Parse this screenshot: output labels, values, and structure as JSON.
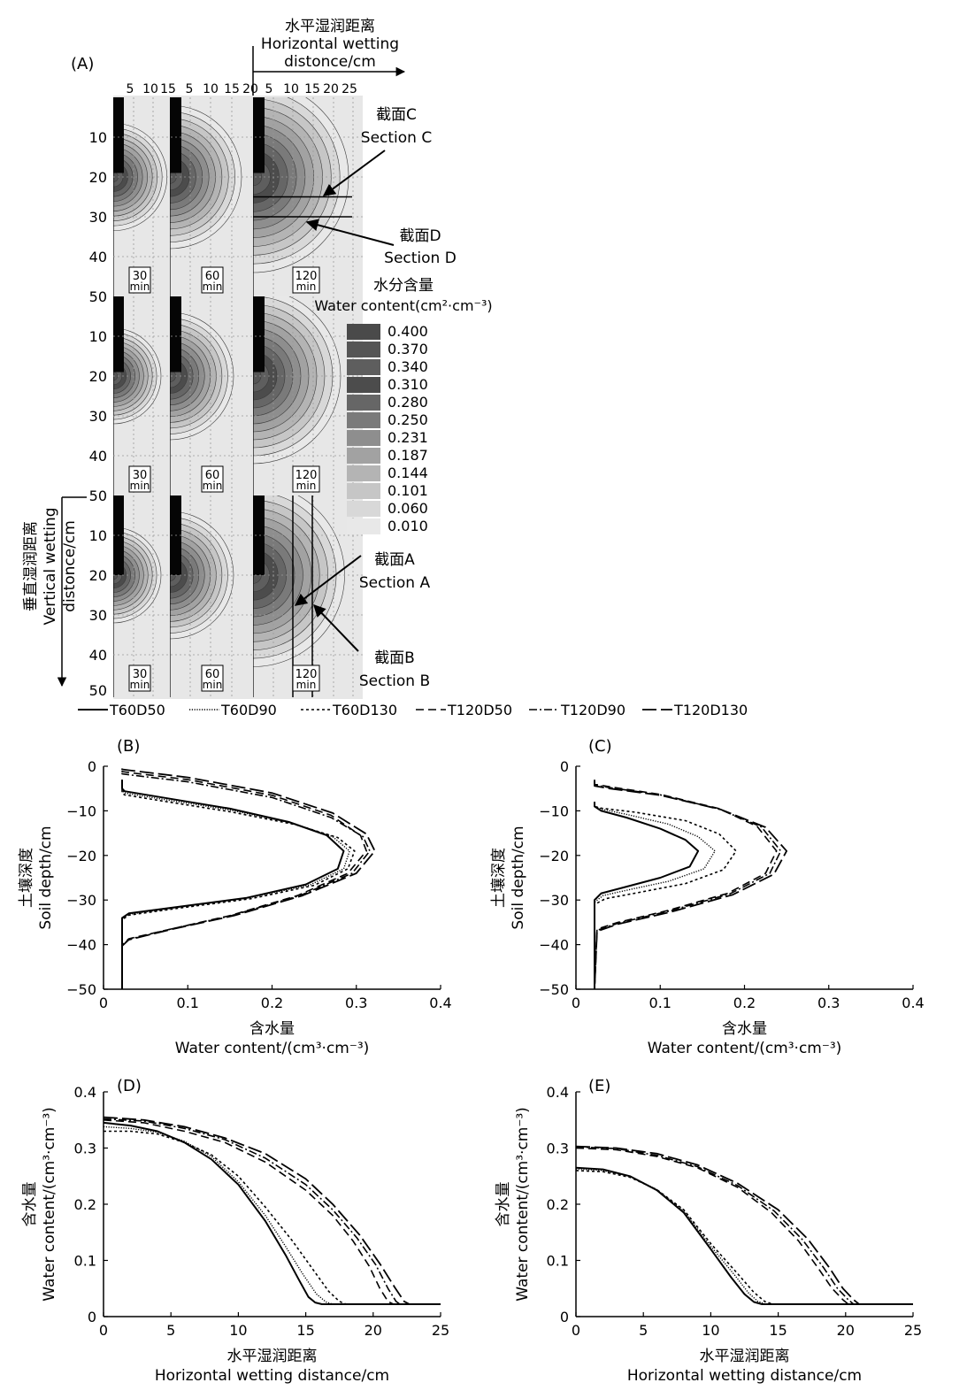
{
  "panelA": {
    "panel_label": "(A)",
    "horizontal_axis": {
      "title_cn": "水平湿润距离",
      "title_en_1": "Horizontal wetting",
      "title_en_2": "distonce/cm"
    },
    "vertical_axis": {
      "title_cn": "垂直湿润距离",
      "title_en_1": "Vertical wetting",
      "title_en_2": "distonce/cm"
    },
    "top_ticks": {
      "col1": [
        "5",
        "10",
        "15"
      ],
      "col2": [
        "5",
        "10",
        "15",
        "20"
      ],
      "col3": [
        "5",
        "10",
        "15",
        "20",
        "25"
      ]
    },
    "depth_ticks": [
      "10",
      "20",
      "30",
      "40",
      "50"
    ],
    "depth_extents_cm": [
      26,
      50
    ],
    "time_boxes": [
      {
        "num": "30",
        "unit": "min"
      },
      {
        "num": "60",
        "unit": "min"
      },
      {
        "num": "120",
        "unit": "min"
      }
    ],
    "rows": [
      {
        "row": 1,
        "wetting_radius_cm": [
          13.5,
          18,
          24
        ],
        "center_depth_cm": 20
      },
      {
        "row": 2,
        "wetting_radius_cm": [
          12,
          16,
          22
        ],
        "center_depth_cm": 20
      },
      {
        "row": 3,
        "wetting_radius_cm": [
          12,
          16,
          23
        ],
        "center_depth_cm": 20
      }
    ],
    "sections": {
      "C": {
        "cn": "截面C",
        "en": "Section C",
        "depth_cm": 25
      },
      "D": {
        "cn": "截面D",
        "en": "Section D",
        "depth_cm": 30
      },
      "A": {
        "cn": "截面A",
        "en": "Section A",
        "x_cm": 10
      },
      "B": {
        "cn": "截面B",
        "en": "Section B",
        "x_cm": 15
      }
    },
    "legend": {
      "title_cn": "水分含量",
      "title_en": "Water content(cm²·cm⁻³)",
      "levels": [
        {
          "value": "0.400",
          "color": "#4a4a4a"
        },
        {
          "value": "0.370",
          "color": "#555555"
        },
        {
          "value": "0.340",
          "color": "#5e5e5e"
        },
        {
          "value": "0.310",
          "color": "#4c4c4c"
        },
        {
          "value": "0.280",
          "color": "#666666"
        },
        {
          "value": "0.250",
          "color": "#7a7a7a"
        },
        {
          "value": "0.231",
          "color": "#8e8e8e"
        },
        {
          "value": "0.187",
          "color": "#a2a2a2"
        },
        {
          "value": "0.144",
          "color": "#b4b4b4"
        },
        {
          "value": "0.101",
          "color": "#c6c6c6"
        },
        {
          "value": "0.060",
          "color": "#d8d8d8"
        },
        {
          "value": "0.010",
          "color": "#e8e8e8"
        }
      ]
    }
  },
  "series_legend": [
    "T60D50",
    "T60D90",
    "T60D130",
    "T120D50",
    "T120D90",
    "T120D130"
  ],
  "chart_data": [
    {
      "panel": "(B)",
      "type": "line",
      "ylabel_cn": "土壤深度",
      "ylabel_en": "Soil depth/cm",
      "xlabel_cn": "含水量",
      "xlabel_en": "Water content/(cm³·cm⁻³)",
      "xlim": [
        0,
        0.4
      ],
      "ylim": [
        -50,
        0
      ],
      "xticks": [
        "0",
        "0.1",
        "0.2",
        "0.3",
        "0.4"
      ],
      "yticks": [
        "0",
        "−10",
        "−20",
        "−30",
        "−40",
        "−50"
      ],
      "series": [
        {
          "name": "T60D50",
          "x": [
            0.022,
            0.022,
            0.025,
            0.07,
            0.15,
            0.22,
            0.265,
            0.285,
            0.278,
            0.24,
            0.17,
            0.09,
            0.03,
            0.022,
            0.022
          ],
          "y": [
            -3,
            -5,
            -5.6,
            -7,
            -9.5,
            -12.5,
            -15.5,
            -19,
            -23,
            -26.5,
            -29.5,
            -31.5,
            -33,
            -34,
            -50
          ]
        },
        {
          "name": "T60D90",
          "x": [
            0.022,
            0.022,
            0.025,
            0.07,
            0.15,
            0.225,
            0.272,
            0.292,
            0.285,
            0.245,
            0.17,
            0.09,
            0.03,
            0.022,
            0.022
          ],
          "y": [
            -3.5,
            -5.5,
            -6,
            -7.4,
            -9.8,
            -12.8,
            -15.8,
            -19,
            -23,
            -26.6,
            -29.6,
            -31.6,
            -33.2,
            -34.2,
            -50
          ]
        },
        {
          "name": "T60D130",
          "x": [
            0.022,
            0.022,
            0.025,
            0.07,
            0.15,
            0.228,
            0.278,
            0.298,
            0.29,
            0.25,
            0.175,
            0.09,
            0.03,
            0.022,
            0.022
          ],
          "y": [
            -4,
            -6,
            -6.4,
            -7.8,
            -10.2,
            -13.1,
            -16,
            -19,
            -23,
            -26.7,
            -29.7,
            -31.8,
            -33.4,
            -34.4,
            -50
          ]
        },
        {
          "name": "T120D50",
          "x": [
            0.022,
            0.022,
            0.03,
            0.1,
            0.2,
            0.27,
            0.305,
            0.312,
            0.29,
            0.23,
            0.15,
            0.08,
            0.03,
            0.022,
            0.022
          ],
          "y": [
            -1,
            -1.2,
            -1.4,
            -3,
            -6.5,
            -11,
            -15.5,
            -19,
            -24,
            -29,
            -33.5,
            -36.5,
            -38.7,
            -40,
            -50
          ]
        },
        {
          "name": "T120D90",
          "x": [
            0.022,
            0.022,
            0.03,
            0.1,
            0.2,
            0.27,
            0.308,
            0.316,
            0.295,
            0.233,
            0.152,
            0.08,
            0.03,
            0.022,
            0.022
          ],
          "y": [
            -1.5,
            -1.7,
            -1.9,
            -3.5,
            -7,
            -11.5,
            -15.8,
            -19,
            -24,
            -29,
            -33.5,
            -36.5,
            -38.8,
            -40.2,
            -50
          ]
        },
        {
          "name": "T120D130",
          "x": [
            0.022,
            0.022,
            0.03,
            0.1,
            0.2,
            0.272,
            0.312,
            0.322,
            0.3,
            0.236,
            0.155,
            0.08,
            0.03,
            0.022,
            0.022
          ],
          "y": [
            -0.5,
            -0.7,
            -0.9,
            -2.5,
            -6,
            -10.5,
            -15.2,
            -19,
            -24,
            -29,
            -33.5,
            -36.6,
            -38.9,
            -40.3,
            -50
          ]
        }
      ]
    },
    {
      "panel": "(C)",
      "type": "line",
      "ylabel_cn": "土壤深度",
      "ylabel_en": "Soil depth/cm",
      "xlabel_cn": "含水量",
      "xlabel_en": "Water content/(cm³·cm⁻³)",
      "xlim": [
        0,
        0.4
      ],
      "ylim": [
        -50,
        0
      ],
      "xticks": [
        "0",
        "0.1",
        "0.2",
        "0.3",
        "0.4"
      ],
      "yticks": [
        "0",
        "−10",
        "−20",
        "−30",
        "−40",
        "−50"
      ],
      "series": [
        {
          "name": "T60D50",
          "x": [
            0.022,
            0.022,
            0.03,
            0.06,
            0.1,
            0.13,
            0.145,
            0.135,
            0.1,
            0.06,
            0.03,
            0.022,
            0.022
          ],
          "y": [
            -8,
            -9,
            -10,
            -11.5,
            -14,
            -16.5,
            -19,
            -22.5,
            -25,
            -27,
            -28.5,
            -30,
            -50
          ]
        },
        {
          "name": "T60D90",
          "x": [
            0.022,
            0.022,
            0.03,
            0.06,
            0.11,
            0.145,
            0.165,
            0.152,
            0.11,
            0.065,
            0.032,
            0.022,
            0.022
          ],
          "y": [
            -8,
            -9,
            -9.6,
            -10.8,
            -13,
            -15.8,
            -19,
            -23,
            -25.8,
            -27.6,
            -29,
            -30.5,
            -50
          ]
        },
        {
          "name": "T60D130",
          "x": [
            0.022,
            0.022,
            0.03,
            0.07,
            0.13,
            0.17,
            0.19,
            0.175,
            0.13,
            0.075,
            0.035,
            0.022,
            0.022
          ],
          "y": [
            -8,
            -9,
            -9.4,
            -10.3,
            -12.2,
            -15.2,
            -19,
            -23.2,
            -26.3,
            -28.3,
            -29.7,
            -31,
            -50
          ]
        },
        {
          "name": "T120D50",
          "x": [
            0.022,
            0.022,
            0.04,
            0.1,
            0.17,
            0.215,
            0.238,
            0.225,
            0.18,
            0.11,
            0.05,
            0.025,
            0.022
          ],
          "y": [
            -3,
            -4,
            -4.6,
            -6.3,
            -9.5,
            -13.5,
            -19,
            -24,
            -28.5,
            -32.3,
            -35,
            -36.5,
            -50
          ]
        },
        {
          "name": "T120D90",
          "x": [
            0.022,
            0.022,
            0.04,
            0.1,
            0.17,
            0.22,
            0.243,
            0.23,
            0.183,
            0.112,
            0.05,
            0.025,
            0.022
          ],
          "y": [
            -3.2,
            -4.2,
            -4.8,
            -6.4,
            -9.6,
            -13.6,
            -19,
            -24,
            -28.6,
            -32.4,
            -35.2,
            -36.8,
            -50
          ]
        },
        {
          "name": "T120D130",
          "x": [
            0.022,
            0.022,
            0.04,
            0.1,
            0.172,
            0.225,
            0.25,
            0.235,
            0.186,
            0.114,
            0.05,
            0.025,
            0.022
          ],
          "y": [
            -3.4,
            -4.4,
            -5,
            -6.5,
            -9.7,
            -13.7,
            -19,
            -24.2,
            -28.8,
            -32.6,
            -35.4,
            -37,
            -50
          ]
        }
      ]
    },
    {
      "panel": "(D)",
      "type": "line",
      "ylabel_cn": "含水量",
      "ylabel_en": "Water content/(cm³·cm⁻³)",
      "xlabel_cn": "水平湿润距离",
      "xlabel_en": "Horizontal wetting distance/cm",
      "xlim": [
        0,
        25
      ],
      "ylim": [
        0,
        0.4
      ],
      "xticks": [
        "0",
        "5",
        "10",
        "15",
        "20",
        "25"
      ],
      "yticks": [
        "0",
        "0.1",
        "0.2",
        "0.3",
        "0.4"
      ],
      "series": [
        {
          "name": "T60D50",
          "x": [
            0,
            2,
            4,
            6,
            8,
            10,
            12,
            13.5,
            14.5,
            15.2,
            15.7,
            16.2,
            25
          ],
          "y": [
            0.345,
            0.34,
            0.33,
            0.31,
            0.28,
            0.235,
            0.17,
            0.11,
            0.065,
            0.035,
            0.025,
            0.022,
            0.022
          ]
        },
        {
          "name": "T60D90",
          "x": [
            0,
            2,
            4,
            6,
            8,
            10,
            12,
            13.5,
            14.8,
            15.8,
            16.5,
            17,
            25
          ],
          "y": [
            0.338,
            0.335,
            0.328,
            0.312,
            0.285,
            0.24,
            0.18,
            0.125,
            0.075,
            0.04,
            0.026,
            0.022,
            0.022
          ]
        },
        {
          "name": "T60D130",
          "x": [
            0,
            2,
            4,
            6,
            8,
            10,
            12,
            14,
            15.5,
            16.7,
            17.5,
            18,
            25
          ],
          "y": [
            0.33,
            0.33,
            0.325,
            0.31,
            0.288,
            0.25,
            0.195,
            0.135,
            0.085,
            0.045,
            0.027,
            0.022,
            0.022
          ]
        },
        {
          "name": "T120D50",
          "x": [
            0,
            3,
            6,
            9,
            12,
            15,
            17,
            18.5,
            19.7,
            20.5,
            21.1,
            21.5,
            25
          ],
          "y": [
            0.35,
            0.345,
            0.33,
            0.31,
            0.275,
            0.225,
            0.18,
            0.135,
            0.09,
            0.05,
            0.027,
            0.022,
            0.022
          ]
        },
        {
          "name": "T120D90",
          "x": [
            0,
            3,
            6,
            9,
            12,
            15,
            17,
            18.8,
            20.2,
            21.1,
            21.7,
            22,
            25
          ],
          "y": [
            0.352,
            0.348,
            0.335,
            0.315,
            0.282,
            0.235,
            0.19,
            0.14,
            0.092,
            0.05,
            0.027,
            0.022,
            0.022
          ]
        },
        {
          "name": "T120D130",
          "x": [
            0,
            3,
            6,
            9,
            12,
            15,
            17,
            19,
            20.5,
            21.6,
            22.3,
            22.7,
            25
          ],
          "y": [
            0.355,
            0.35,
            0.338,
            0.318,
            0.29,
            0.245,
            0.2,
            0.145,
            0.094,
            0.052,
            0.027,
            0.022,
            0.022
          ]
        }
      ]
    },
    {
      "panel": "(E)",
      "type": "line",
      "ylabel_cn": "含水量",
      "ylabel_en": "Water content/(cm³·cm⁻³)",
      "xlabel_cn": "水平湿润距离",
      "xlabel_en": "Horizontal wetting distance/cm",
      "xlim": [
        0,
        25
      ],
      "ylim": [
        0,
        0.4
      ],
      "xticks": [
        "0",
        "5",
        "10",
        "15",
        "20",
        "25"
      ],
      "yticks": [
        "0",
        "0.1",
        "0.2",
        "0.3",
        "0.4"
      ],
      "series": [
        {
          "name": "T60D50",
          "x": [
            0,
            2,
            4,
            6,
            8,
            10,
            11.5,
            12.5,
            13.2,
            13.8,
            25
          ],
          "y": [
            0.265,
            0.262,
            0.25,
            0.225,
            0.185,
            0.12,
            0.07,
            0.04,
            0.026,
            0.022,
            0.022
          ]
        },
        {
          "name": "T60D90",
          "x": [
            0,
            2,
            4,
            6,
            8,
            10,
            11.8,
            12.8,
            13.5,
            14.1,
            25
          ],
          "y": [
            0.263,
            0.26,
            0.25,
            0.226,
            0.188,
            0.125,
            0.073,
            0.042,
            0.027,
            0.022,
            0.022
          ]
        },
        {
          "name": "T60D130",
          "x": [
            0,
            2,
            4,
            6,
            8,
            10,
            12,
            13.2,
            14,
            14.6,
            25
          ],
          "y": [
            0.26,
            0.258,
            0.248,
            0.226,
            0.19,
            0.13,
            0.076,
            0.043,
            0.027,
            0.022,
            0.022
          ]
        },
        {
          "name": "T120D50",
          "x": [
            0,
            3,
            6,
            9,
            12,
            14.5,
            16.5,
            18,
            19,
            19.8,
            20.2,
            25
          ],
          "y": [
            0.3,
            0.297,
            0.285,
            0.265,
            0.23,
            0.185,
            0.135,
            0.085,
            0.05,
            0.03,
            0.022,
            0.022
          ]
        },
        {
          "name": "T120D90",
          "x": [
            0,
            3,
            6,
            9,
            12,
            14.7,
            16.8,
            18.4,
            19.4,
            20.2,
            20.6,
            25
          ],
          "y": [
            0.302,
            0.299,
            0.287,
            0.267,
            0.233,
            0.188,
            0.137,
            0.086,
            0.05,
            0.03,
            0.022,
            0.022
          ]
        },
        {
          "name": "T120D130",
          "x": [
            0,
            3,
            6,
            9,
            12,
            15,
            17.2,
            18.8,
            19.8,
            20.6,
            21,
            25
          ],
          "y": [
            0.303,
            0.3,
            0.29,
            0.27,
            0.237,
            0.19,
            0.138,
            0.087,
            0.05,
            0.03,
            0.022,
            0.022
          ]
        }
      ]
    }
  ]
}
